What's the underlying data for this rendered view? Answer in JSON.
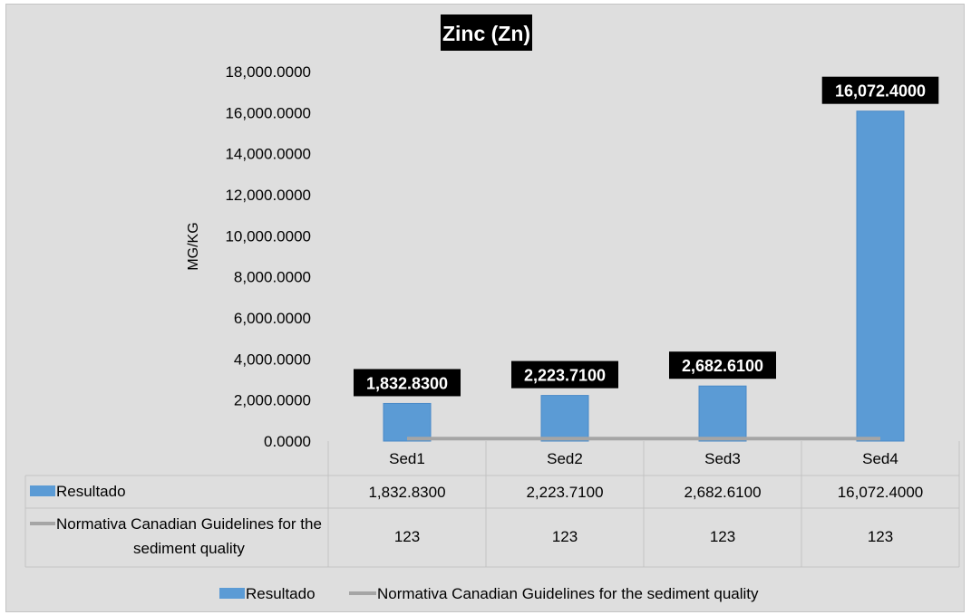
{
  "chart_data": {
    "type": "bar",
    "title": "Zinc (Zn)",
    "ylabel": "MG/KG",
    "xlabel": "",
    "ylim": [
      0,
      18000
    ],
    "ytick_values": [
      0,
      2000,
      4000,
      6000,
      8000,
      10000,
      12000,
      14000,
      16000,
      18000
    ],
    "ytick_labels": [
      "0.0000",
      "2,000.0000",
      "4,000.0000",
      "6,000.0000",
      "8,000.0000",
      "10,000.0000",
      "12,000.0000",
      "14,000.0000",
      "16,000.0000",
      "18,000.0000"
    ],
    "categories": [
      "Sed1",
      "Sed2",
      "Sed3",
      "Sed4"
    ],
    "series": [
      {
        "name": "Resultado",
        "kind": "bar",
        "color": "#5b9bd5",
        "values": [
          1832.83,
          2223.71,
          2682.61,
          16072.4
        ],
        "labels": [
          "1,832.8300",
          "2,223.7100",
          "2,682.6100",
          "16,072.4000"
        ]
      },
      {
        "name": "Normativa Canadian Guidelines for the sediment quality",
        "table_name_lines": [
          "Normativa Canadian Guidelines for the",
          "sediment quality"
        ],
        "kind": "line",
        "color": "#a5a5a5",
        "values": [
          123,
          123,
          123,
          123
        ],
        "labels": [
          "123",
          "123",
          "123",
          "123"
        ]
      }
    ],
    "data_table": true,
    "legend_position": "bottom",
    "grid": false
  }
}
